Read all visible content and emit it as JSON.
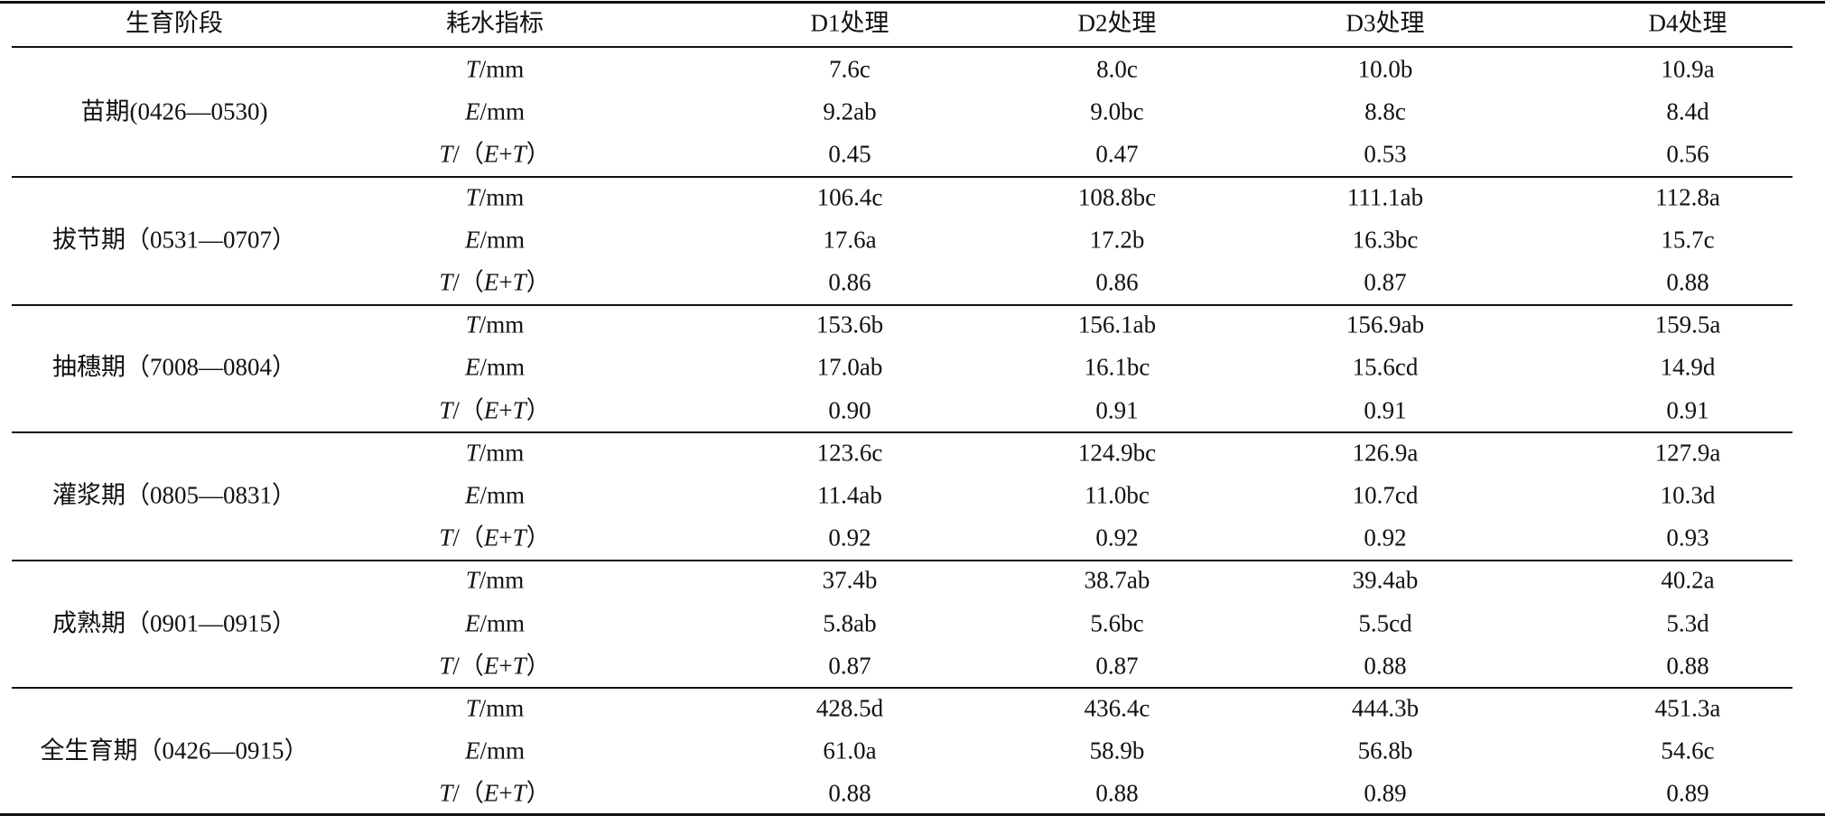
{
  "table": {
    "header": [
      "生育阶段",
      "耗水指标",
      "D1处理",
      "D2处理",
      "D3处理",
      "D4处理"
    ],
    "groups": [
      {
        "stage": "苗期(0426—0530)",
        "rows": [
          {
            "index": "T/mm",
            "values": [
              "7.6c",
              "8.0c",
              "10.0b",
              "10.9a"
            ]
          },
          {
            "index": "E/mm",
            "values": [
              "9.2ab",
              "9.0bc",
              "8.8c",
              "8.4d"
            ]
          },
          {
            "index": "T/（E+T）",
            "values": [
              "0.45",
              "0.47",
              "0.53",
              "0.56"
            ]
          }
        ]
      },
      {
        "stage": "拔节期（0531—0707）",
        "rows": [
          {
            "index": "T/mm",
            "values": [
              "106.4c",
              "108.8bc",
              "111.1ab",
              "112.8a"
            ]
          },
          {
            "index": "E/mm",
            "values": [
              "17.6a",
              "17.2b",
              "16.3bc",
              "15.7c"
            ]
          },
          {
            "index": "T/（E+T）",
            "values": [
              "0.86",
              "0.86",
              "0.87",
              "0.88"
            ]
          }
        ]
      },
      {
        "stage": "抽穗期（7008—0804）",
        "rows": [
          {
            "index": "T/mm",
            "values": [
              "153.6b",
              "156.1ab",
              "156.9ab",
              "159.5a"
            ]
          },
          {
            "index": "E/mm",
            "values": [
              "17.0ab",
              "16.1bc",
              "15.6cd",
              "14.9d"
            ]
          },
          {
            "index": "T/（E+T）",
            "values": [
              "0.90",
              "0.91",
              "0.91",
              "0.91"
            ]
          }
        ]
      },
      {
        "stage": "灌浆期（0805—0831）",
        "rows": [
          {
            "index": "T/mm",
            "values": [
              "123.6c",
              "124.9bc",
              "126.9a",
              "127.9a"
            ]
          },
          {
            "index": "E/mm",
            "values": [
              "11.4ab",
              "11.0bc",
              "10.7cd",
              "10.3d"
            ]
          },
          {
            "index": "T/（E+T）",
            "values": [
              "0.92",
              "0.92",
              "0.92",
              "0.93"
            ]
          }
        ]
      },
      {
        "stage": "成熟期（0901—0915）",
        "rows": [
          {
            "index": "T/mm",
            "values": [
              "37.4b",
              "38.7ab",
              "39.4ab",
              "40.2a"
            ]
          },
          {
            "index": "E/mm",
            "values": [
              "5.8ab",
              "5.6bc",
              "5.5cd",
              "5.3d"
            ]
          },
          {
            "index": "T/（E+T）",
            "values": [
              "0.87",
              "0.87",
              "0.88",
              "0.88"
            ]
          }
        ]
      },
      {
        "stage": "全生育期（0426—0915）",
        "rows": [
          {
            "index": "T/mm",
            "values": [
              "428.5d",
              "436.4c",
              "444.3b",
              "451.3a"
            ]
          },
          {
            "index": "E/mm",
            "values": [
              "61.0a",
              "58.9b",
              "56.8b",
              "54.6c"
            ]
          },
          {
            "index": "T/（E+T）",
            "values": [
              "0.88",
              "0.88",
              "0.89",
              "0.89"
            ]
          }
        ]
      }
    ]
  }
}
